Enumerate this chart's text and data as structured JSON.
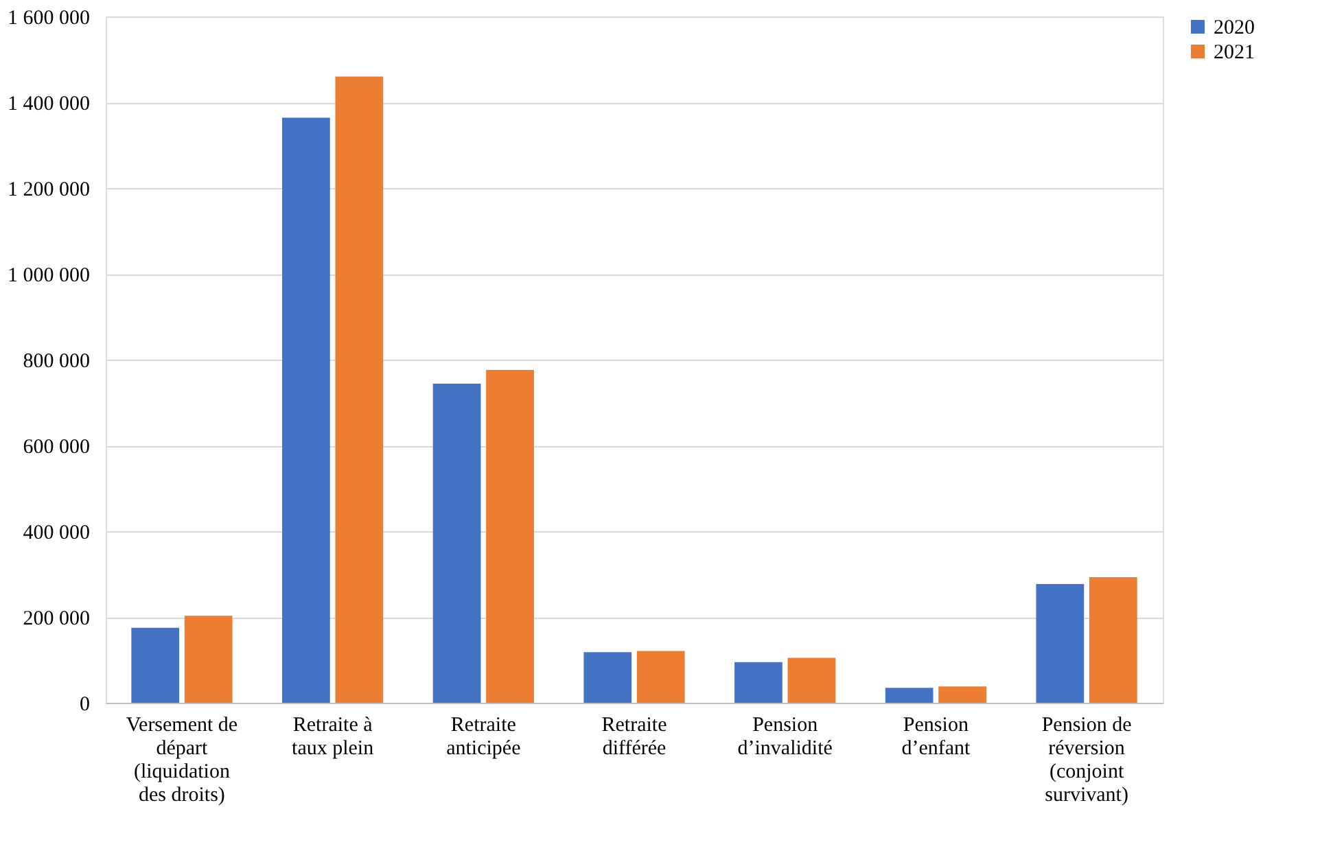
{
  "chart_data": {
    "type": "bar",
    "categories": [
      "Versement de départ (liquidation des droits)",
      "Retraite à taux plein",
      "Retraite anticipée",
      "Retraite différée",
      "Pension d’invalidité",
      "Pension d’enfant",
      "Pension de réversion (conjoint survivant)"
    ],
    "series": [
      {
        "name": "2020",
        "color": "#4472c4",
        "values": [
          175000,
          1364000,
          744000,
          118000,
          95000,
          35000,
          277000
        ]
      },
      {
        "name": "2021",
        "color": "#ed7d31",
        "values": [
          203000,
          1460000,
          776000,
          121000,
          105000,
          38000,
          293000
        ]
      }
    ],
    "ylim": [
      0,
      1600000
    ],
    "yticks": [
      0,
      200000,
      400000,
      600000,
      800000,
      1000000,
      1200000,
      1400000,
      1600000
    ],
    "grid": "y",
    "legend": "right"
  }
}
